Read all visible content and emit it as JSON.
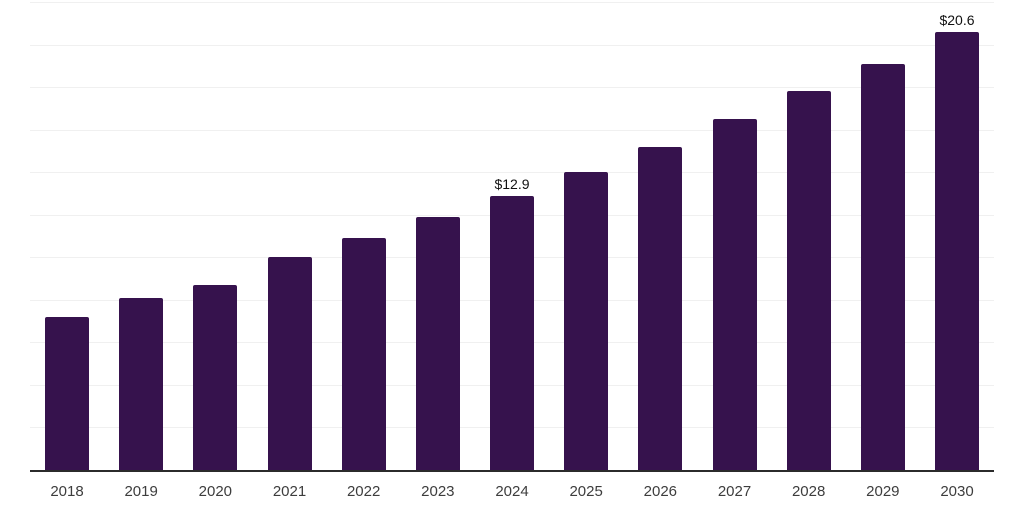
{
  "chart_data": {
    "type": "bar",
    "title": "",
    "xlabel": "",
    "ylabel": "",
    "categories": [
      "2018",
      "2019",
      "2020",
      "2021",
      "2022",
      "2023",
      "2024",
      "2025",
      "2026",
      "2027",
      "2028",
      "2029",
      "2030"
    ],
    "values": [
      7.2,
      8.1,
      8.7,
      10.0,
      10.9,
      11.9,
      12.9,
      14.0,
      15.2,
      16.5,
      17.8,
      19.1,
      20.6
    ],
    "value_unit": "USD billions",
    "data_labels": [
      {
        "category": "2024",
        "text": "$12.9"
      },
      {
        "category": "2030",
        "text": "$20.6"
      }
    ],
    "ylim": [
      0,
      22
    ],
    "gridline_step": 2,
    "grid_on": true,
    "legend": "none",
    "colors": {
      "bar": "#36124d",
      "axis_line": "#2b2b2b",
      "gridline": "#f0f0f0",
      "tick_label": "#3d3d3d",
      "data_label": "#111111",
      "background": "#ffffff"
    }
  }
}
